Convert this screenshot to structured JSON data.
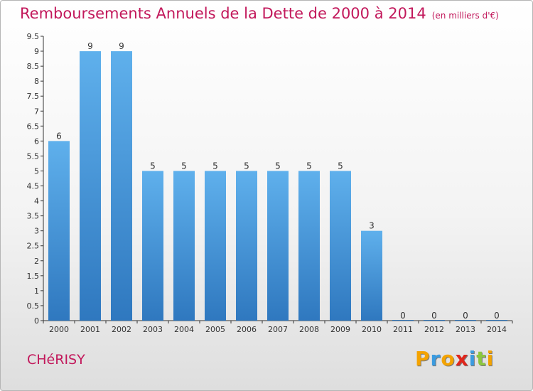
{
  "header": {
    "title": "Remboursements Annuels de la Dette de 2000 à 2014",
    "unit": "(en milliers d'€)"
  },
  "footer": {
    "city": "CHéRISY",
    "brand_letters": [
      "P",
      "r",
      "o",
      "x",
      "i",
      "t",
      "i"
    ],
    "brand_colors": [
      "#f4a300",
      "#3a9be0",
      "#f4a300",
      "#e0261c",
      "#3a9be0",
      "#8cc63f",
      "#f4a300"
    ]
  },
  "colors": {
    "title": "#c2185b",
    "bar_top": "#5fb0ec",
    "bar_bottom": "#2f78bf"
  },
  "chart_data": {
    "type": "bar",
    "categories": [
      "2000",
      "2001",
      "2002",
      "2003",
      "2004",
      "2005",
      "2006",
      "2007",
      "2008",
      "2009",
      "2010",
      "2011",
      "2012",
      "2013",
      "2014"
    ],
    "values": [
      6,
      9,
      9,
      5,
      5,
      5,
      5,
      5,
      5,
      5,
      3,
      0,
      0,
      0,
      0
    ],
    "value_labels": [
      "6",
      "9",
      "9",
      "5",
      "5",
      "5",
      "5",
      "5",
      "5",
      "5",
      "3",
      "0",
      "0",
      "0",
      "0"
    ],
    "ylim": [
      0,
      9.5
    ],
    "yticks": [
      0,
      0.5,
      1,
      1.5,
      2,
      2.5,
      3,
      3.5,
      4,
      4.5,
      5,
      5.5,
      6,
      6.5,
      7,
      7.5,
      8,
      8.5,
      9,
      9.5
    ],
    "ytick_labels": [
      "0",
      "0.5",
      "1",
      "1.5",
      "2",
      "2.5",
      "3",
      "3.5",
      "4",
      "4.5",
      "5",
      "5.5",
      "6",
      "6.5",
      "7",
      "7.5",
      "8",
      "8.5",
      "9",
      "9.5"
    ],
    "grid": false,
    "xlabel": "",
    "ylabel": ""
  }
}
